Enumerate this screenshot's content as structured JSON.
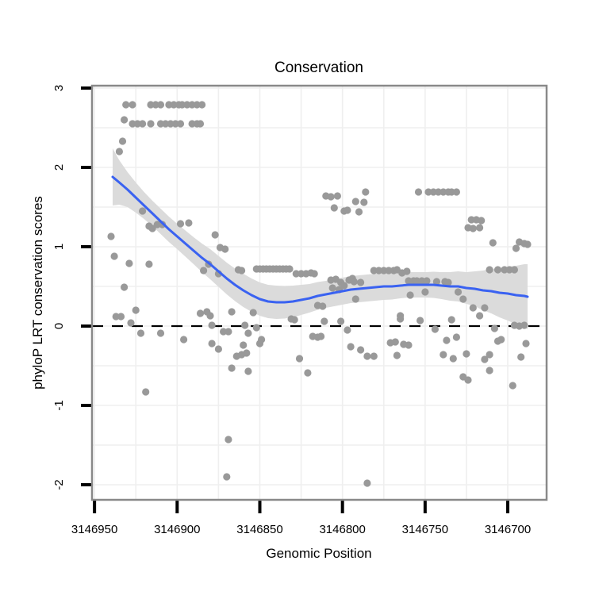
{
  "title": "Conservation",
  "axes": {
    "x_label": "Genomic Position",
    "y_label": "phyloP LRT conservation scores",
    "x_tick_labels": [
      "3146950",
      "3146900",
      "3146850",
      "3146800",
      "3146750",
      "3146700"
    ],
    "y_tick_labels": [
      "3",
      "2",
      "1",
      "0",
      "-1",
      "-2"
    ]
  },
  "chart_data": {
    "type": "scatter",
    "title": "Conservation",
    "xlabel": "Genomic Position",
    "ylabel": "phyloP LRT conservation scores",
    "x_reversed": true,
    "xlim": [
      3146951.5,
      3146676.5
    ],
    "ylim": [
      -2.19,
      3.03
    ],
    "x_tick_values": [
      3146950,
      3146900,
      3146850,
      3146800,
      3146750,
      3146700
    ],
    "y_tick_values": [
      3,
      2,
      1,
      0,
      -1,
      -2
    ],
    "grid": {
      "x_step": 25,
      "y_step": 0.5,
      "on": true
    },
    "reference_line_y": 0,
    "colors": {
      "point": "#999999",
      "smooth_line": "#3A62F1",
      "ci_band": "#DBDBDB",
      "reference_line": "#000000",
      "grid_line": "#EFEFEF",
      "panel_border": "#898989",
      "tick": "#000000"
    },
    "points": [
      [
        3146931,
        2.79
      ],
      [
        3146927,
        2.79
      ],
      [
        3146916,
        2.79
      ],
      [
        3146913,
        2.79
      ],
      [
        3146910,
        2.79
      ],
      [
        3146905,
        2.79
      ],
      [
        3146902,
        2.79
      ],
      [
        3146899,
        2.79
      ],
      [
        3146897,
        2.79
      ],
      [
        3146894,
        2.79
      ],
      [
        3146891,
        2.79
      ],
      [
        3146888,
        2.79
      ],
      [
        3146885,
        2.79
      ],
      [
        3146932,
        2.6
      ],
      [
        3146927,
        2.55
      ],
      [
        3146924,
        2.55
      ],
      [
        3146921,
        2.55
      ],
      [
        3146916,
        2.55
      ],
      [
        3146910,
        2.55
      ],
      [
        3146907,
        2.55
      ],
      [
        3146904,
        2.55
      ],
      [
        3146901,
        2.55
      ],
      [
        3146898,
        2.55
      ],
      [
        3146891,
        2.55
      ],
      [
        3146888,
        2.55
      ],
      [
        3146886,
        2.55
      ],
      [
        3146933,
        2.33
      ],
      [
        3146935,
        2.2
      ],
      [
        3146940,
        1.13
      ],
      [
        3146921,
        1.45
      ],
      [
        3146917,
        1.26
      ],
      [
        3146915,
        1.23
      ],
      [
        3146912,
        1.28
      ],
      [
        3146909,
        1.28
      ],
      [
        3146898,
        1.29
      ],
      [
        3146893,
        1.3
      ],
      [
        3146877,
        1.15
      ],
      [
        3146874,
        0.99
      ],
      [
        3146871,
        0.97
      ],
      [
        3146938,
        0.88
      ],
      [
        3146929,
        0.79
      ],
      [
        3146917,
        0.78
      ],
      [
        3146884,
        0.7
      ],
      [
        3146881,
        0.78
      ],
      [
        3146875,
        0.66
      ],
      [
        3146932,
        0.49
      ],
      [
        3146937,
        0.12
      ],
      [
        3146934,
        0.12
      ],
      [
        3146925,
        0.2
      ],
      [
        3146928,
        0.04
      ],
      [
        3146922,
        -0.09
      ],
      [
        3146910,
        -0.09
      ],
      [
        3146896,
        -0.17
      ],
      [
        3146919,
        -0.83
      ],
      [
        3146886,
        0.16
      ],
      [
        3146882,
        0.18
      ],
      [
        3146880,
        0.13
      ],
      [
        3146879,
        0.01
      ],
      [
        3146872,
        -0.07
      ],
      [
        3146869,
        -0.07
      ],
      [
        3146879,
        -0.22
      ],
      [
        3146875,
        -0.29
      ],
      [
        3146860,
        -0.24
      ],
      [
        3146850,
        -0.22
      ],
      [
        3146864,
        -0.38
      ],
      [
        3146861,
        -0.36
      ],
      [
        3146858,
        -0.34
      ],
      [
        3146867,
        -0.53
      ],
      [
        3146857,
        -0.57
      ],
      [
        3146849,
        -0.17
      ],
      [
        3146869,
        -1.43
      ],
      [
        3146870,
        -1.9
      ],
      [
        3146863,
        0.71
      ],
      [
        3146861,
        0.7
      ],
      [
        3146852,
        0.72
      ],
      [
        3146850,
        0.72
      ],
      [
        3146848,
        0.72
      ],
      [
        3146846,
        0.72
      ],
      [
        3146844,
        0.72
      ],
      [
        3146842,
        0.72
      ],
      [
        3146840,
        0.72
      ],
      [
        3146838,
        0.72
      ],
      [
        3146836,
        0.72
      ],
      [
        3146834,
        0.72
      ],
      [
        3146832,
        0.72
      ],
      [
        3146828,
        0.66
      ],
      [
        3146825,
        0.66
      ],
      [
        3146822,
        0.66
      ],
      [
        3146819,
        0.67
      ],
      [
        3146817,
        0.66
      ],
      [
        3146867,
        0.18
      ],
      [
        3146854,
        0.17
      ],
      [
        3146859,
        0.01
      ],
      [
        3146852,
        -0.02
      ],
      [
        3146857,
        -0.09
      ],
      [
        3146831,
        0.09
      ],
      [
        3146829,
        0.08
      ],
      [
        3146826,
        -0.41
      ],
      [
        3146821,
        -0.59
      ],
      [
        3146818,
        -0.13
      ],
      [
        3146815,
        -0.14
      ],
      [
        3146813,
        -0.13
      ],
      [
        3146811,
        0.06
      ],
      [
        3146801,
        0.06
      ],
      [
        3146815,
        0.26
      ],
      [
        3146812,
        0.25
      ],
      [
        3146807,
        0.58
      ],
      [
        3146804,
        0.59
      ],
      [
        3146801,
        0.55
      ],
      [
        3146806,
        0.48
      ],
      [
        3146802,
        0.46
      ],
      [
        3146799,
        0.51
      ],
      [
        3146796,
        0.58
      ],
      [
        3146794,
        0.6
      ],
      [
        3146793,
        0.56
      ],
      [
        3146789,
        0.55
      ],
      [
        3146792,
        0.34
      ],
      [
        3146797,
        -0.05
      ],
      [
        3146795,
        -0.26
      ],
      [
        3146789,
        -0.3
      ],
      [
        3146785,
        -0.38
      ],
      [
        3146781,
        -0.38
      ],
      [
        3146785,
        -1.98
      ],
      [
        3146810,
        1.64
      ],
      [
        3146807,
        1.63
      ],
      [
        3146803,
        1.64
      ],
      [
        3146805,
        1.49
      ],
      [
        3146799,
        1.45
      ],
      [
        3146797,
        1.46
      ],
      [
        3146792,
        1.57
      ],
      [
        3146787,
        1.56
      ],
      [
        3146790,
        1.44
      ],
      [
        3146786,
        1.69
      ],
      [
        3146781,
        0.7
      ],
      [
        3146778,
        0.7
      ],
      [
        3146775,
        0.7
      ],
      [
        3146772,
        0.7
      ],
      [
        3146769,
        0.7
      ],
      [
        3146767,
        0.71
      ],
      [
        3146764,
        0.67
      ],
      [
        3146761,
        0.69
      ],
      [
        3146765,
        0.13
      ],
      [
        3146765,
        0.09
      ],
      [
        3146753,
        0.07
      ],
      [
        3146744,
        -0.04
      ],
      [
        3146771,
        -0.21
      ],
      [
        3146768,
        -0.2
      ],
      [
        3146763,
        -0.23
      ],
      [
        3146760,
        -0.24
      ],
      [
        3146767,
        -0.37
      ],
      [
        3146754,
        1.69
      ],
      [
        3146748,
        1.69
      ],
      [
        3146745,
        1.69
      ],
      [
        3146742,
        1.69
      ],
      [
        3146739,
        1.69
      ],
      [
        3146736,
        1.69
      ],
      [
        3146734,
        1.69
      ],
      [
        3146731,
        1.69
      ],
      [
        3146760,
        0.57
      ],
      [
        3146757,
        0.57
      ],
      [
        3146755,
        0.57
      ],
      [
        3146752,
        0.57
      ],
      [
        3146749,
        0.57
      ],
      [
        3146743,
        0.56
      ],
      [
        3146738,
        0.56
      ],
      [
        3146736,
        0.55
      ],
      [
        3146759,
        0.39
      ],
      [
        3146750,
        0.43
      ],
      [
        3146734,
        0.08
      ],
      [
        3146737,
        -0.18
      ],
      [
        3146731,
        -0.14
      ],
      [
        3146739,
        -0.36
      ],
      [
        3146733,
        -0.41
      ],
      [
        3146725,
        -0.35
      ],
      [
        3146727,
        -0.64
      ],
      [
        3146724,
        -0.68
      ],
      [
        3146730,
        0.43
      ],
      [
        3146727,
        0.34
      ],
      [
        3146722,
        1.34
      ],
      [
        3146719,
        1.34
      ],
      [
        3146716,
        1.33
      ],
      [
        3146724,
        1.24
      ],
      [
        3146721,
        1.23
      ],
      [
        3146717,
        1.24
      ],
      [
        3146709,
        1.05
      ],
      [
        3146721,
        0.23
      ],
      [
        3146714,
        0.23
      ],
      [
        3146717,
        0.13
      ],
      [
        3146711,
        0.71
      ],
      [
        3146706,
        0.71
      ],
      [
        3146702,
        0.71
      ],
      [
        3146699,
        0.71
      ],
      [
        3146696,
        0.71
      ],
      [
        3146708,
        -0.03
      ],
      [
        3146706,
        -0.19
      ],
      [
        3146704,
        -0.17
      ],
      [
        3146714,
        -0.42
      ],
      [
        3146711,
        -0.36
      ],
      [
        3146711,
        -0.56
      ],
      [
        3146695,
        0.98
      ],
      [
        3146693,
        1.06
      ],
      [
        3146690,
        1.04
      ],
      [
        3146688,
        1.03
      ],
      [
        3146696,
        0.01
      ],
      [
        3146693,
        0.0
      ],
      [
        3146690,
        0.01
      ],
      [
        3146689,
        -0.22
      ],
      [
        3146692,
        -0.39
      ],
      [
        3146697,
        -0.75
      ]
    ],
    "smooth": [
      [
        3146939,
        1.88,
        0.36
      ],
      [
        3146935,
        1.81,
        0.28
      ],
      [
        3146930,
        1.72,
        0.22
      ],
      [
        3146925,
        1.62,
        0.19
      ],
      [
        3146920,
        1.52,
        0.17
      ],
      [
        3146915,
        1.42,
        0.16
      ],
      [
        3146910,
        1.32,
        0.16
      ],
      [
        3146905,
        1.22,
        0.16
      ],
      [
        3146900,
        1.13,
        0.16
      ],
      [
        3146895,
        1.04,
        0.165
      ],
      [
        3146890,
        0.95,
        0.17
      ],
      [
        3146885,
        0.86,
        0.18
      ],
      [
        3146880,
        0.78,
        0.19
      ],
      [
        3146875,
        0.69,
        0.195
      ],
      [
        3146870,
        0.6,
        0.2
      ],
      [
        3146865,
        0.52,
        0.205
      ],
      [
        3146860,
        0.45,
        0.21
      ],
      [
        3146855,
        0.39,
        0.21
      ],
      [
        3146850,
        0.34,
        0.21
      ],
      [
        3146845,
        0.31,
        0.21
      ],
      [
        3146840,
        0.3,
        0.21
      ],
      [
        3146835,
        0.3,
        0.205
      ],
      [
        3146830,
        0.31,
        0.2
      ],
      [
        3146825,
        0.33,
        0.19
      ],
      [
        3146820,
        0.35,
        0.18
      ],
      [
        3146815,
        0.38,
        0.175
      ],
      [
        3146810,
        0.4,
        0.17
      ],
      [
        3146805,
        0.42,
        0.17
      ],
      [
        3146800,
        0.44,
        0.17
      ],
      [
        3146795,
        0.46,
        0.17
      ],
      [
        3146790,
        0.47,
        0.17
      ],
      [
        3146785,
        0.48,
        0.17
      ],
      [
        3146780,
        0.49,
        0.17
      ],
      [
        3146775,
        0.5,
        0.17
      ],
      [
        3146770,
        0.5,
        0.165
      ],
      [
        3146765,
        0.51,
        0.16
      ],
      [
        3146760,
        0.52,
        0.16
      ],
      [
        3146755,
        0.52,
        0.16
      ],
      [
        3146750,
        0.52,
        0.16
      ],
      [
        3146745,
        0.52,
        0.165
      ],
      [
        3146740,
        0.51,
        0.17
      ],
      [
        3146735,
        0.5,
        0.18
      ],
      [
        3146730,
        0.5,
        0.19
      ],
      [
        3146725,
        0.48,
        0.2
      ],
      [
        3146720,
        0.47,
        0.22
      ],
      [
        3146715,
        0.45,
        0.25
      ],
      [
        3146710,
        0.44,
        0.28
      ],
      [
        3146705,
        0.42,
        0.31
      ],
      [
        3146700,
        0.41,
        0.34
      ],
      [
        3146695,
        0.39,
        0.37
      ],
      [
        3146690,
        0.38,
        0.4
      ],
      [
        3146688,
        0.37,
        0.41
      ]
    ]
  }
}
